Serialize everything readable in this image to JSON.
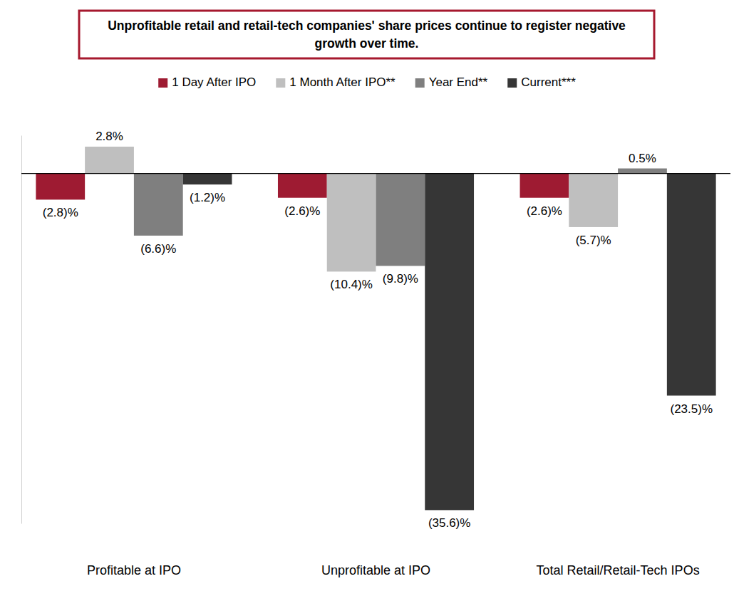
{
  "chart_data": {
    "type": "bar",
    "title": "Unprofitable retail and retail-tech companies' share prices continue to register negative growth over time.",
    "categories": [
      "Profitable at IPO",
      "Unprofitable at IPO",
      "Total Retail/Retail-Tech IPOs"
    ],
    "series": [
      {
        "name": "1 Day After IPO",
        "color": "#9e1b32",
        "values": [
          -2.8,
          -2.6,
          -2.6
        ],
        "value_labels": [
          "(2.8)%",
          "(2.6)%",
          "(2.6)%"
        ]
      },
      {
        "name": "1 Month After IPO**",
        "color": "#bfbfbf",
        "values": [
          2.8,
          -10.4,
          -5.7
        ],
        "value_labels": [
          "2.8%",
          "(10.4)%",
          "(5.7)%"
        ]
      },
      {
        "name": "Year End**",
        "color": "#7f7f7f",
        "values": [
          -6.6,
          -9.8,
          0.5
        ],
        "value_labels": [
          "(6.6)%",
          "(9.8)%",
          "0.5%"
        ]
      },
      {
        "name": "Current***",
        "color": "#363636",
        "values": [
          -1.2,
          -35.6,
          -23.5
        ],
        "value_labels": [
          "(1.2)%",
          "(35.6)%",
          "(23.5)%"
        ]
      }
    ],
    "ylim": [
      -37,
      4
    ],
    "yticks": [
      0
    ],
    "tick_labels": "x",
    "data_labels": true,
    "legend": "top"
  }
}
